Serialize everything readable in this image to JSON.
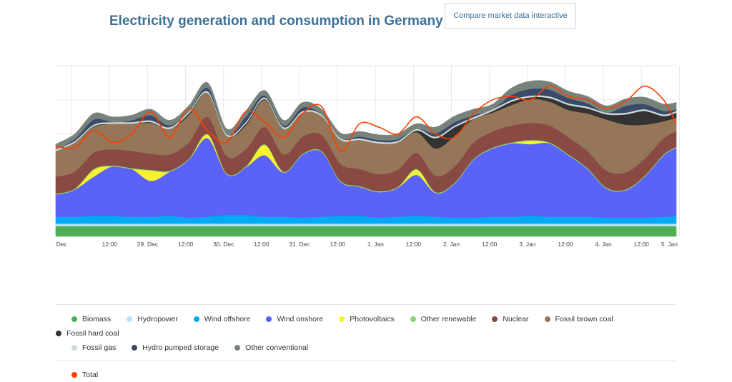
{
  "header": {
    "title": "Electricity generation and consumption in Germany",
    "compare_button": "Compare market data interactive"
  },
  "colors": {
    "Biomass": "#4caf50",
    "Hydropower": "#b3e5fc",
    "Wind offshore": "#03a9f4",
    "Wind onshore": "#5b62f7",
    "Photovoltaics": "#f5f22e",
    "Other renewable": "#8bd672",
    "Nuclear": "#8a4a44",
    "Fossil brown coal": "#957658",
    "Fossil hard coal": "#333333",
    "Fossil gas": "#cddcd8",
    "Hydro pumped storage": "#3b4a6b",
    "Other conventional": "#77837a",
    "Total": "#ff3d00"
  },
  "legend": {
    "row1": [
      "Biomass",
      "Hydropower",
      "Wind offshore",
      "Wind onshore",
      "Photovoltaics",
      "Other renewable",
      "Nuclear",
      "Fossil brown coal",
      "Fossil hard coal"
    ],
    "row2": [
      "Fossil gas",
      "Hydro pumped storage",
      "Other conventional"
    ],
    "total": "Total"
  },
  "chart_data": {
    "type": "area",
    "stacked": true,
    "title": "Electricity generation and consumption in Germany",
    "x_ticks": [
      ". Dec",
      "12:00",
      "29. Dec",
      "12:00",
      "30. Dec",
      "12:00",
      "31. Dec",
      "12:00",
      "1. Jan",
      "12:00",
      "2. Jan",
      "12:00",
      "3. Jan",
      "12:00",
      "4. Jan",
      "12:00",
      "5. Jan"
    ],
    "x_range_hours": [
      0,
      196
    ],
    "y_range": [
      0,
      100
    ],
    "grid": true,
    "x_hours": [
      0,
      6,
      12,
      18,
      24,
      30,
      36,
      42,
      48,
      54,
      60,
      66,
      72,
      78,
      84,
      90,
      96,
      102,
      108,
      114,
      120,
      126,
      132,
      138,
      144,
      150,
      156,
      162,
      168,
      174,
      180,
      186,
      192,
      196
    ],
    "series": [
      {
        "name": "Biomass",
        "values": [
          6,
          6,
          6,
          6,
          6,
          6,
          6,
          6,
          6,
          6,
          6,
          6,
          6,
          6,
          6,
          6,
          6,
          6,
          6,
          6,
          6,
          6,
          6,
          6,
          6,
          6,
          6,
          6,
          6,
          6,
          6,
          6,
          6,
          6
        ]
      },
      {
        "name": "Hydropower",
        "values": [
          1.5,
          1.5,
          1.5,
          1.5,
          1.5,
          1.5,
          1.5,
          1.5,
          1.5,
          1.5,
          1.5,
          1.5,
          1.5,
          1.5,
          1.5,
          1.5,
          1.5,
          1.5,
          1.5,
          1.5,
          1.5,
          1.5,
          1.5,
          1.5,
          1.5,
          1.5,
          1.5,
          1.5,
          1.5,
          1.5,
          1.5,
          1.5,
          1.5,
          1.5
        ]
      },
      {
        "name": "Wind offshore",
        "values": [
          4,
          4,
          4.5,
          4.5,
          4,
          4,
          4.5,
          3.5,
          4,
          5,
          5,
          4,
          4,
          3.5,
          4,
          4.5,
          4.5,
          3.5,
          4,
          4.5,
          4,
          3.5,
          3.5,
          4,
          4,
          4.5,
          4,
          4,
          4,
          3.5,
          3.5,
          3.5,
          4,
          4.5
        ]
      },
      {
        "name": "Wind onshore",
        "values": [
          13,
          16,
          23,
          29,
          28,
          21,
          26,
          34,
          46,
          24,
          28,
          36,
          26,
          37,
          38,
          20,
          17,
          15,
          17,
          24,
          14,
          20,
          34,
          40,
          43,
          42,
          43,
          36,
          28,
          17,
          16,
          24,
          36,
          40
        ]
      },
      {
        "name": "Photovoltaics",
        "values": [
          0,
          0,
          4,
          0,
          0,
          6,
          0,
          0,
          2,
          0,
          0,
          6,
          0,
          0,
          0,
          0,
          0,
          0,
          0,
          3,
          0,
          0,
          0,
          0,
          0,
          2,
          0,
          0,
          0,
          0,
          0,
          0,
          0,
          0
        ]
      },
      {
        "name": "Other renewable",
        "values": [
          0.5,
          0.5,
          0.5,
          0.5,
          0.5,
          0.5,
          0.5,
          0.5,
          0.5,
          0.5,
          0.5,
          0.5,
          0.5,
          0.5,
          0.5,
          0.5,
          0.5,
          0.5,
          0.5,
          0.5,
          0.5,
          0.5,
          0.5,
          0.5,
          0.5,
          0.5,
          0.5,
          0.5,
          0.5,
          0.5,
          0.5,
          0.5,
          0.5,
          0.5
        ]
      },
      {
        "name": "Nuclear",
        "values": [
          10,
          10,
          9.5,
          9.5,
          10,
          9.5,
          9.5,
          9.5,
          10,
          10,
          10,
          10,
          10,
          10,
          9.5,
          10,
          10,
          10,
          10,
          9.5,
          9.5,
          9.5,
          9.5,
          9.5,
          10,
          10,
          10,
          10,
          10,
          10,
          10,
          10,
          9.5,
          9
        ]
      },
      {
        "name": "Fossil brown coal",
        "values": [
          15,
          17,
          15,
          15,
          16,
          18,
          15,
          16,
          14,
          12,
          14,
          16,
          15,
          14,
          11,
          14,
          17,
          18,
          16,
          12,
          16,
          18,
          14,
          11,
          12,
          14,
          14,
          16,
          22,
          30,
          28,
          20,
          10,
          8
        ]
      },
      {
        "name": "Fossil hard coal",
        "values": [
          0,
          0,
          0.5,
          0,
          0,
          0.5,
          0,
          1,
          0,
          0,
          1,
          0.5,
          0,
          0,
          0,
          0,
          0,
          0,
          0,
          1,
          6,
          5,
          0,
          1,
          2,
          1,
          2,
          3,
          3,
          3,
          6,
          8,
          3,
          3
        ]
      },
      {
        "name": "Fossil gas",
        "values": [
          1,
          1,
          1,
          1,
          1,
          1,
          1,
          1,
          1,
          1,
          1,
          1,
          1,
          1,
          1,
          1,
          1,
          1,
          1,
          1,
          1,
          1,
          1,
          1,
          1,
          1,
          1,
          1,
          1,
          1,
          1,
          1,
          1,
          1
        ]
      },
      {
        "name": "Hydro pumped storage",
        "values": [
          0,
          1,
          3,
          0,
          1,
          3,
          1,
          0,
          2,
          0,
          3,
          1,
          1,
          2,
          0,
          0,
          1,
          1,
          1,
          0,
          2,
          2,
          1,
          0,
          3,
          4,
          4,
          3,
          2,
          0,
          4,
          3,
          2,
          1
        ]
      },
      {
        "name": "Other conventional",
        "values": [
          3,
          3,
          3.5,
          3,
          3,
          3.5,
          3,
          3.5,
          3,
          3,
          3.5,
          3,
          3,
          3,
          3,
          3,
          3,
          3,
          3,
          3,
          3.5,
          3.5,
          3.5,
          3,
          4,
          4.5,
          4.5,
          4,
          4,
          4,
          4,
          4,
          4,
          4
        ]
      }
    ],
    "total": {
      "name": "Total",
      "values": [
        53,
        52,
        62,
        55,
        60,
        73,
        58,
        75,
        62,
        55,
        73,
        67,
        58,
        72,
        76,
        50,
        66,
        64,
        60,
        70,
        60,
        58,
        72,
        80,
        82,
        80,
        88,
        82,
        80,
        75,
        79,
        88,
        80,
        66
      ]
    }
  }
}
